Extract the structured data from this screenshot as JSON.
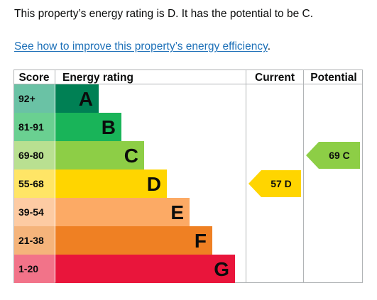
{
  "intro_text": "This property’s energy rating is D. It has the potential to be C.",
  "improve_link": {
    "label": "See how to improve this property’s energy efficiency",
    "suffix": "."
  },
  "chart_data": {
    "type": "bar",
    "xlabel": "",
    "ylabel": "",
    "headers": {
      "score": "Score",
      "rating": "Energy rating",
      "current": "Current",
      "potential": "Potential"
    },
    "bands": [
      {
        "score": "92+",
        "letter": "A",
        "color": "#008054",
        "score_color": "#6ac2a5"
      },
      {
        "score": "81-91",
        "letter": "B",
        "color": "#19b459",
        "score_color": "#6ad091"
      },
      {
        "score": "69-80",
        "letter": "C",
        "color": "#8dce46",
        "score_color": "#b9e091"
      },
      {
        "score": "55-68",
        "letter": "D",
        "color": "#ffd500",
        "score_color": "#ffe566"
      },
      {
        "score": "39-54",
        "letter": "E",
        "color": "#fcaa65",
        "score_color": "#fdcba3"
      },
      {
        "score": "21-38",
        "letter": "F",
        "color": "#ef8023",
        "score_color": "#f5b47b"
      },
      {
        "score": "1-20",
        "letter": "G",
        "color": "#e9153b",
        "score_color": "#f27389"
      }
    ],
    "current": {
      "value": 57,
      "letter": "D",
      "label": "57 D",
      "color": "#ffd500"
    },
    "potential": {
      "value": 69,
      "letter": "C",
      "label": "69 C",
      "color": "#8dce46"
    }
  }
}
